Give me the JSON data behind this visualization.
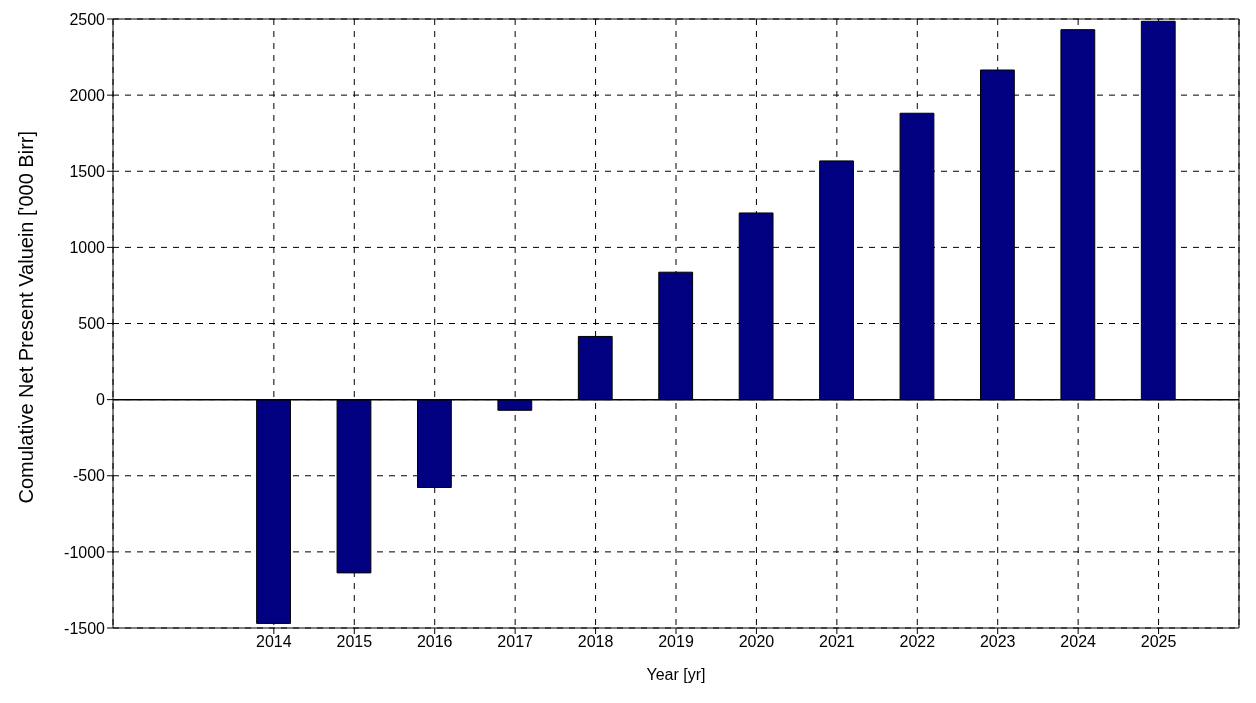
{
  "chart_data": {
    "type": "bar",
    "xlabel": "Year [yr]",
    "ylabel": "Comulative Net Present Valuein ['000 Birr]",
    "x": [
      2014,
      2015,
      2016,
      2017,
      2018,
      2019,
      2020,
      2021,
      2022,
      2023,
      2024,
      2025
    ],
    "values": [
      -1470,
      -1138,
      -577,
      -70,
      415,
      837,
      1226,
      1568,
      1881,
      2165,
      2430,
      2485
    ],
    "color": "#000080",
    "xlim": [
      2012,
      2026
    ],
    "xticks": [
      2014,
      2015,
      2016,
      2017,
      2018,
      2019,
      2020,
      2021,
      2022,
      2023,
      2024,
      2025
    ],
    "ylim": [
      -1500,
      2500
    ],
    "yticks": [
      -1500,
      -1000,
      -500,
      0,
      500,
      1000,
      1500,
      2000,
      2500
    ],
    "grid": true,
    "legend": false
  }
}
